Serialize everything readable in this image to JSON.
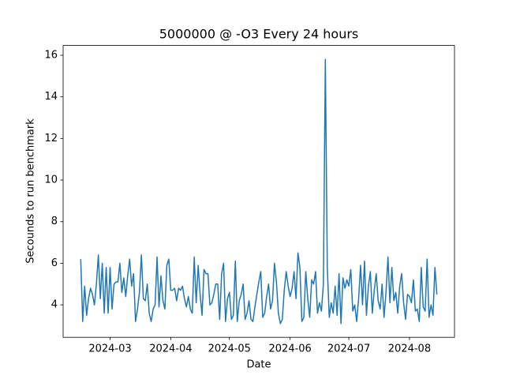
{
  "chart_data": {
    "type": "line",
    "title": "5000000 @ -O3 Every 24 hours",
    "x_label": "Date",
    "y_label": "Secounds to run benchmark",
    "x": [
      "2024-02-15",
      "2024-02-16",
      "2024-02-17",
      "2024-02-18",
      "2024-02-19",
      "2024-02-20",
      "2024-02-21",
      "2024-02-22",
      "2024-02-23",
      "2024-02-24",
      "2024-02-25",
      "2024-02-26",
      "2024-02-27",
      "2024-02-28",
      "2024-02-29",
      "2024-03-01",
      "2024-03-02",
      "2024-03-03",
      "2024-03-04",
      "2024-03-05",
      "2024-03-06",
      "2024-03-07",
      "2024-03-08",
      "2024-03-09",
      "2024-03-10",
      "2024-03-11",
      "2024-03-12",
      "2024-03-13",
      "2024-03-14",
      "2024-03-15",
      "2024-03-16",
      "2024-03-17",
      "2024-03-18",
      "2024-03-19",
      "2024-03-20",
      "2024-03-21",
      "2024-03-22",
      "2024-03-23",
      "2024-03-24",
      "2024-03-25",
      "2024-03-26",
      "2024-03-27",
      "2024-03-28",
      "2024-03-29",
      "2024-03-30",
      "2024-03-31",
      "2024-04-01",
      "2024-04-02",
      "2024-04-03",
      "2024-04-04",
      "2024-04-05",
      "2024-04-06",
      "2024-04-07",
      "2024-04-08",
      "2024-04-09",
      "2024-04-10",
      "2024-04-11",
      "2024-04-12",
      "2024-04-13",
      "2024-04-14",
      "2024-04-15",
      "2024-04-16",
      "2024-04-17",
      "2024-04-18",
      "2024-04-19",
      "2024-04-20",
      "2024-04-21",
      "2024-04-22",
      "2024-04-23",
      "2024-04-24",
      "2024-04-25",
      "2024-04-26",
      "2024-04-27",
      "2024-04-28",
      "2024-04-29",
      "2024-04-30",
      "2024-05-01",
      "2024-05-02",
      "2024-05-03",
      "2024-05-04",
      "2024-05-05",
      "2024-05-06",
      "2024-05-07",
      "2024-05-08",
      "2024-05-09",
      "2024-05-10",
      "2024-05-11",
      "2024-05-12",
      "2024-05-13",
      "2024-05-14",
      "2024-05-15",
      "2024-05-16",
      "2024-05-17",
      "2024-05-18",
      "2024-05-19",
      "2024-05-20",
      "2024-05-21",
      "2024-05-22",
      "2024-05-23",
      "2024-05-24",
      "2024-05-25",
      "2024-05-26",
      "2024-05-27",
      "2024-05-28",
      "2024-05-29",
      "2024-05-30",
      "2024-05-31",
      "2024-06-01",
      "2024-06-02",
      "2024-06-03",
      "2024-06-04",
      "2024-06-05",
      "2024-06-06",
      "2024-06-07",
      "2024-06-08",
      "2024-06-09",
      "2024-06-10",
      "2024-06-11",
      "2024-06-12",
      "2024-06-13",
      "2024-06-14",
      "2024-06-15",
      "2024-06-16",
      "2024-06-17",
      "2024-06-18",
      "2024-06-19",
      "2024-06-20",
      "2024-06-21",
      "2024-06-22",
      "2024-06-23",
      "2024-06-24",
      "2024-06-25",
      "2024-06-26",
      "2024-06-27",
      "2024-06-28",
      "2024-06-29",
      "2024-06-30",
      "2024-07-01",
      "2024-07-02",
      "2024-07-03",
      "2024-07-04",
      "2024-07-05",
      "2024-07-06",
      "2024-07-07",
      "2024-07-08",
      "2024-07-09",
      "2024-07-10",
      "2024-07-11",
      "2024-07-12",
      "2024-07-13",
      "2024-07-14",
      "2024-07-15",
      "2024-07-16",
      "2024-07-17",
      "2024-07-18",
      "2024-07-19",
      "2024-07-20",
      "2024-07-21",
      "2024-07-22",
      "2024-07-23",
      "2024-07-24",
      "2024-07-25",
      "2024-07-26",
      "2024-07-27",
      "2024-07-28",
      "2024-07-29",
      "2024-07-30",
      "2024-07-31",
      "2024-08-01",
      "2024-08-02",
      "2024-08-03",
      "2024-08-04",
      "2024-08-05",
      "2024-08-06",
      "2024-08-07",
      "2024-08-08",
      "2024-08-09",
      "2024-08-10",
      "2024-08-11",
      "2024-08-12",
      "2024-08-13",
      "2024-08-14",
      "2024-08-15"
    ],
    "series": [
      {
        "color": "#1f77b4",
        "values": [
          6.2,
          3.2,
          4.9,
          3.5,
          4.3,
          4.8,
          4.5,
          4.0,
          5.0,
          6.4,
          4.3,
          6.0,
          3.6,
          5.8,
          3.6,
          5.8,
          3.8,
          5.0,
          5.1,
          5.1,
          6.0,
          4.6,
          5.3,
          4.4,
          5.4,
          6.2,
          4.9,
          5.5,
          3.2,
          3.8,
          4.6,
          6.4,
          4.3,
          4.2,
          5.0,
          3.6,
          3.2,
          3.8,
          4.0,
          6.3,
          3.9,
          5.4,
          4.2,
          3.8,
          5.9,
          6.2,
          4.7,
          4.7,
          4.8,
          4.2,
          4.8,
          4.7,
          4.9,
          4.3,
          3.9,
          4.4,
          3.8,
          3.6,
          6.3,
          4.1,
          5.9,
          4.5,
          3.5,
          5.7,
          5.5,
          5.5,
          4.0,
          4.1,
          4.5,
          5.0,
          5.0,
          3.3,
          5.5,
          6.0,
          3.2,
          4.3,
          4.6,
          3.3,
          3.5,
          6.1,
          3.2,
          4.2,
          4.5,
          5.0,
          3.3,
          3.6,
          4.2,
          3.3,
          3.2,
          3.9,
          4.5,
          5.1,
          5.6,
          3.4,
          3.6,
          4.4,
          5.0,
          3.8,
          4.2,
          6.0,
          5.1,
          3.6,
          3.1,
          3.3,
          4.7,
          5.6,
          4.9,
          4.4,
          4.8,
          5.6,
          4.3,
          6.5,
          5.8,
          3.2,
          3.4,
          5.6,
          4.3,
          3.4,
          5.2,
          5.0,
          5.6,
          3.6,
          4.1,
          3.7,
          5.0,
          15.8,
          5.8,
          3.4,
          4.1,
          3.6,
          4.9,
          3.5,
          5.5,
          3.1,
          5.3,
          4.8,
          5.2,
          4.9,
          5.7,
          3.7,
          4.0,
          3.2,
          4.3,
          5.9,
          4.0,
          6.1,
          3.5,
          4.9,
          5.6,
          3.6,
          4.7,
          5.5,
          4.2,
          3.8,
          5.0,
          3.4,
          4.6,
          6.3,
          4.1,
          5.8,
          4.2,
          4.6,
          3.6,
          4.9,
          5.5,
          4.1,
          3.3,
          4.5,
          4.4,
          4.1,
          5.2,
          3.7,
          3.8,
          3.2,
          5.8,
          3.9,
          3.7,
          6.2,
          3.4,
          4.0,
          3.5,
          5.8,
          4.5
        ]
      }
    ],
    "xlim": [
      "2024-02-06",
      "2024-08-24"
    ],
    "xticks": [
      {
        "value": "2024-03-01",
        "label": "2024-03"
      },
      {
        "value": "2024-04-01",
        "label": "2024-04"
      },
      {
        "value": "2024-05-01",
        "label": "2024-05"
      },
      {
        "value": "2024-06-01",
        "label": "2024-06"
      },
      {
        "value": "2024-07-01",
        "label": "2024-07"
      },
      {
        "value": "2024-08-01",
        "label": "2024-08"
      }
    ],
    "ylim": [
      2.44,
      16.47
    ],
    "yticks": [
      4,
      6,
      8,
      10,
      12,
      14,
      16
    ],
    "grid": false
  }
}
